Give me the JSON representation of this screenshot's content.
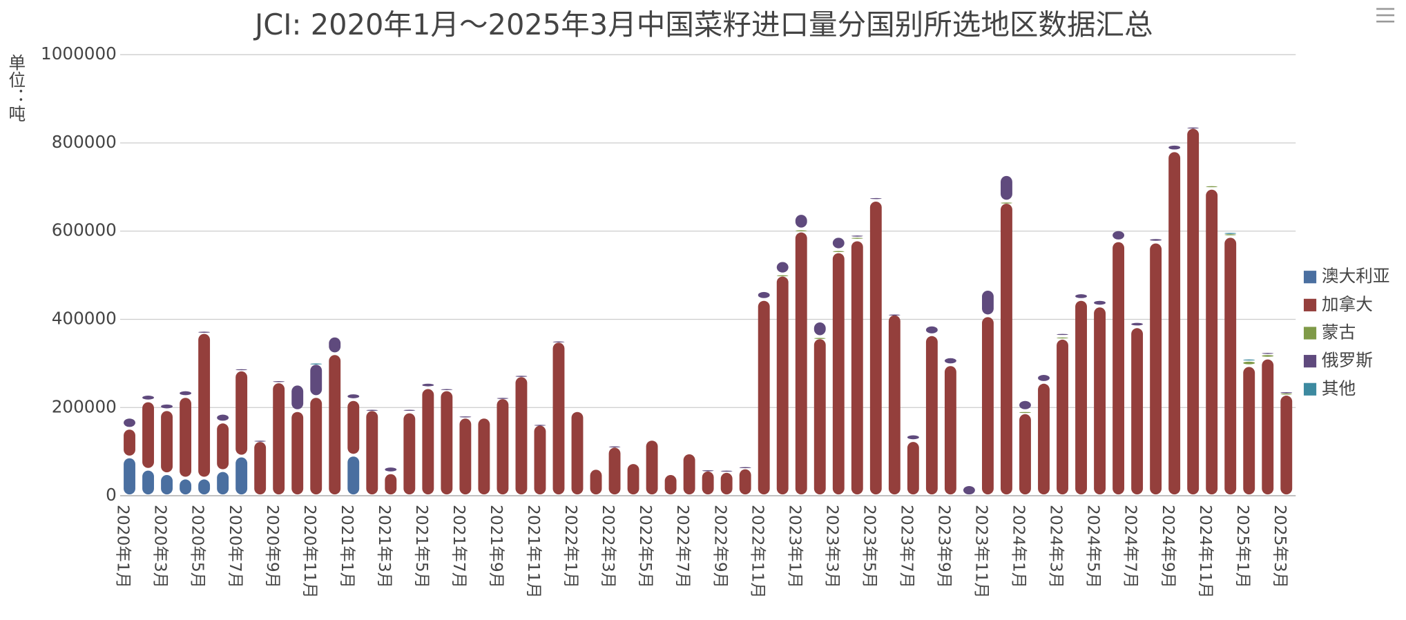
{
  "chart_data": {
    "type": "bar",
    "stacked": true,
    "title": "JCI: 2020年1月～2025年3月中国菜籽进口量分国别所选地区数据汇总",
    "y_label": "单位：吨",
    "categories": [
      "2020年1月",
      null,
      "2020年3月",
      null,
      "2020年5月",
      null,
      "2020年7月",
      null,
      "2020年9月",
      null,
      "2020年11月",
      null,
      "2021年1月",
      null,
      "2021年3月",
      null,
      "2021年5月",
      null,
      "2021年7月",
      null,
      "2021年9月",
      null,
      "2021年11月",
      null,
      "2022年1月",
      null,
      "2022年3月",
      null,
      "2022年5月",
      null,
      "2022年7月",
      null,
      "2022年9月",
      null,
      "2022年11月",
      null,
      "2023年1月",
      null,
      "2023年3月",
      null,
      "2023年5月",
      null,
      "2023年7月",
      null,
      "2023年9月",
      null,
      "2023年11月",
      null,
      "2024年1月",
      null,
      "2024年3月",
      null,
      "2024年5月",
      null,
      "2024年7月",
      null,
      "2024年9月",
      null,
      "2024年11月",
      null,
      "2025年1月",
      null,
      "2025年3月"
    ],
    "series": [
      {
        "name": "澳大利亚",
        "color": "#4a6fa0",
        "values": [
          88000,
          60000,
          50000,
          40000,
          40000,
          57000,
          90000,
          0,
          0,
          0,
          0,
          0,
          92000,
          0,
          0,
          0,
          0,
          0,
          0,
          0,
          0,
          0,
          0,
          0,
          0,
          0,
          0,
          0,
          0,
          0,
          0,
          0,
          0,
          0,
          0,
          0,
          0,
          0,
          0,
          0,
          0,
          0,
          0,
          0,
          0,
          0,
          0,
          0,
          0,
          0,
          0,
          0,
          0,
          0,
          0,
          0,
          0,
          0,
          0,
          0,
          0,
          0,
          0
        ]
      },
      {
        "name": "加拿大",
        "color": "#943f3c",
        "values": [
          65000,
          155000,
          145000,
          185000,
          330000,
          110000,
          195000,
          125000,
          258000,
          193000,
          225000,
          322000,
          126000,
          195000,
          52000,
          190000,
          245000,
          240000,
          178000,
          178000,
          222000,
          272000,
          162000,
          350000,
          193000,
          62000,
          112000,
          75000,
          128000,
          50000,
          97000,
          58000,
          55000,
          63000,
          445000,
          500000,
          600000,
          358000,
          553000,
          580000,
          670000,
          412000,
          125000,
          365000,
          297000,
          0,
          408000,
          665000,
          188000,
          257000,
          357000,
          445000,
          430000,
          578000,
          383000,
          575000,
          782000,
          835000,
          697000,
          588000,
          295000,
          312000,
          230000
        ]
      },
      {
        "name": "蒙古",
        "color": "#7f9a48",
        "values": [
          0,
          0,
          0,
          0,
          0,
          0,
          0,
          0,
          0,
          0,
          0,
          0,
          0,
          0,
          0,
          0,
          0,
          0,
          0,
          0,
          0,
          0,
          0,
          0,
          0,
          0,
          0,
          0,
          0,
          0,
          0,
          0,
          0,
          0,
          0,
          3000,
          5000,
          3000,
          5000,
          8000,
          0,
          0,
          0,
          0,
          0,
          0,
          0,
          3000,
          5000,
          0,
          5000,
          0,
          0,
          0,
          0,
          0,
          0,
          0,
          8000,
          8000,
          12000,
          10000,
          5000
        ]
      },
      {
        "name": "俄罗斯",
        "color": "#5f4a7d",
        "values": [
          25000,
          15000,
          15000,
          15000,
          5000,
          20000,
          5000,
          3000,
          5000,
          60000,
          75000,
          40000,
          15000,
          3000,
          15000,
          8000,
          12000,
          5000,
          5000,
          0,
          3000,
          3000,
          2000,
          3000,
          0,
          0,
          3000,
          0,
          0,
          0,
          0,
          3000,
          5000,
          5000,
          20000,
          30000,
          35000,
          35000,
          30000,
          5000,
          8000,
          2000,
          15000,
          22000,
          18000,
          25000,
          60000,
          60000,
          25000,
          20000,
          8000,
          15000,
          15000,
          25000,
          12000,
          10000,
          15000,
          3000,
          0,
          0,
          0,
          5000,
          3000
        ]
      },
      {
        "name": "其他",
        "color": "#3d8aa0",
        "values": [
          0,
          0,
          0,
          0,
          0,
          0,
          0,
          0,
          0,
          0,
          3000,
          0,
          0,
          0,
          0,
          0,
          0,
          0,
          0,
          0,
          0,
          0,
          0,
          0,
          0,
          0,
          0,
          0,
          0,
          0,
          0,
          0,
          0,
          0,
          0,
          0,
          0,
          0,
          0,
          0,
          0,
          0,
          0,
          0,
          0,
          0,
          0,
          0,
          0,
          0,
          0,
          0,
          0,
          0,
          0,
          0,
          0,
          0,
          0,
          3000,
          5000,
          0,
          0
        ]
      }
    ],
    "ylim": [
      0,
      1000000
    ],
    "yticks": [
      0,
      200000,
      400000,
      600000,
      800000,
      1000000
    ],
    "grid": true,
    "legend": "right"
  }
}
